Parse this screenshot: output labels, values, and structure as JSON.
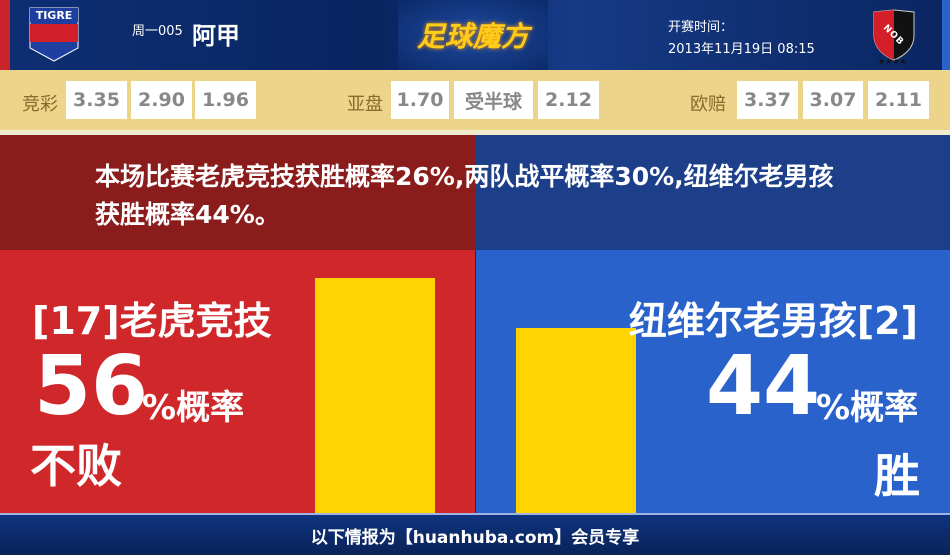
{
  "header": {
    "home_logo_text": "TIGRE",
    "away_logo_text": "NOB",
    "match_no": "周一005",
    "league": "阿甲",
    "brand": "足球魔方",
    "kickoff_label": "开赛时间：",
    "kickoff_time": "2013年11月19日 08:15"
  },
  "odds": {
    "jingcai": {
      "label": "竞彩",
      "values": [
        "3.35",
        "2.90",
        "1.96"
      ]
    },
    "asian": {
      "label": "亚盘",
      "home": "1.70",
      "handicap": "受半球",
      "away": "2.12"
    },
    "euro": {
      "label": "欧赔",
      "values": [
        "3.37",
        "3.07",
        "2.11"
      ]
    }
  },
  "summary": "本场比赛老虎竞技获胜概率26%,两队战平概率30%,纽维尔老男孩获胜概率44%。",
  "home": {
    "name": "[17]老虎竞技",
    "percent": "56",
    "percent_suffix": "%概率",
    "result": "不败",
    "bar_value": 56,
    "color": "#d0282a"
  },
  "away": {
    "name": "纽维尔老男孩[2]",
    "percent": "44",
    "percent_suffix": "%概率",
    "result": "胜",
    "bar_value": 44,
    "color": "#2a62cc"
  },
  "bar_color": "#ffd400",
  "footer": "以下情报为【huanhuba.com】会员专享"
}
